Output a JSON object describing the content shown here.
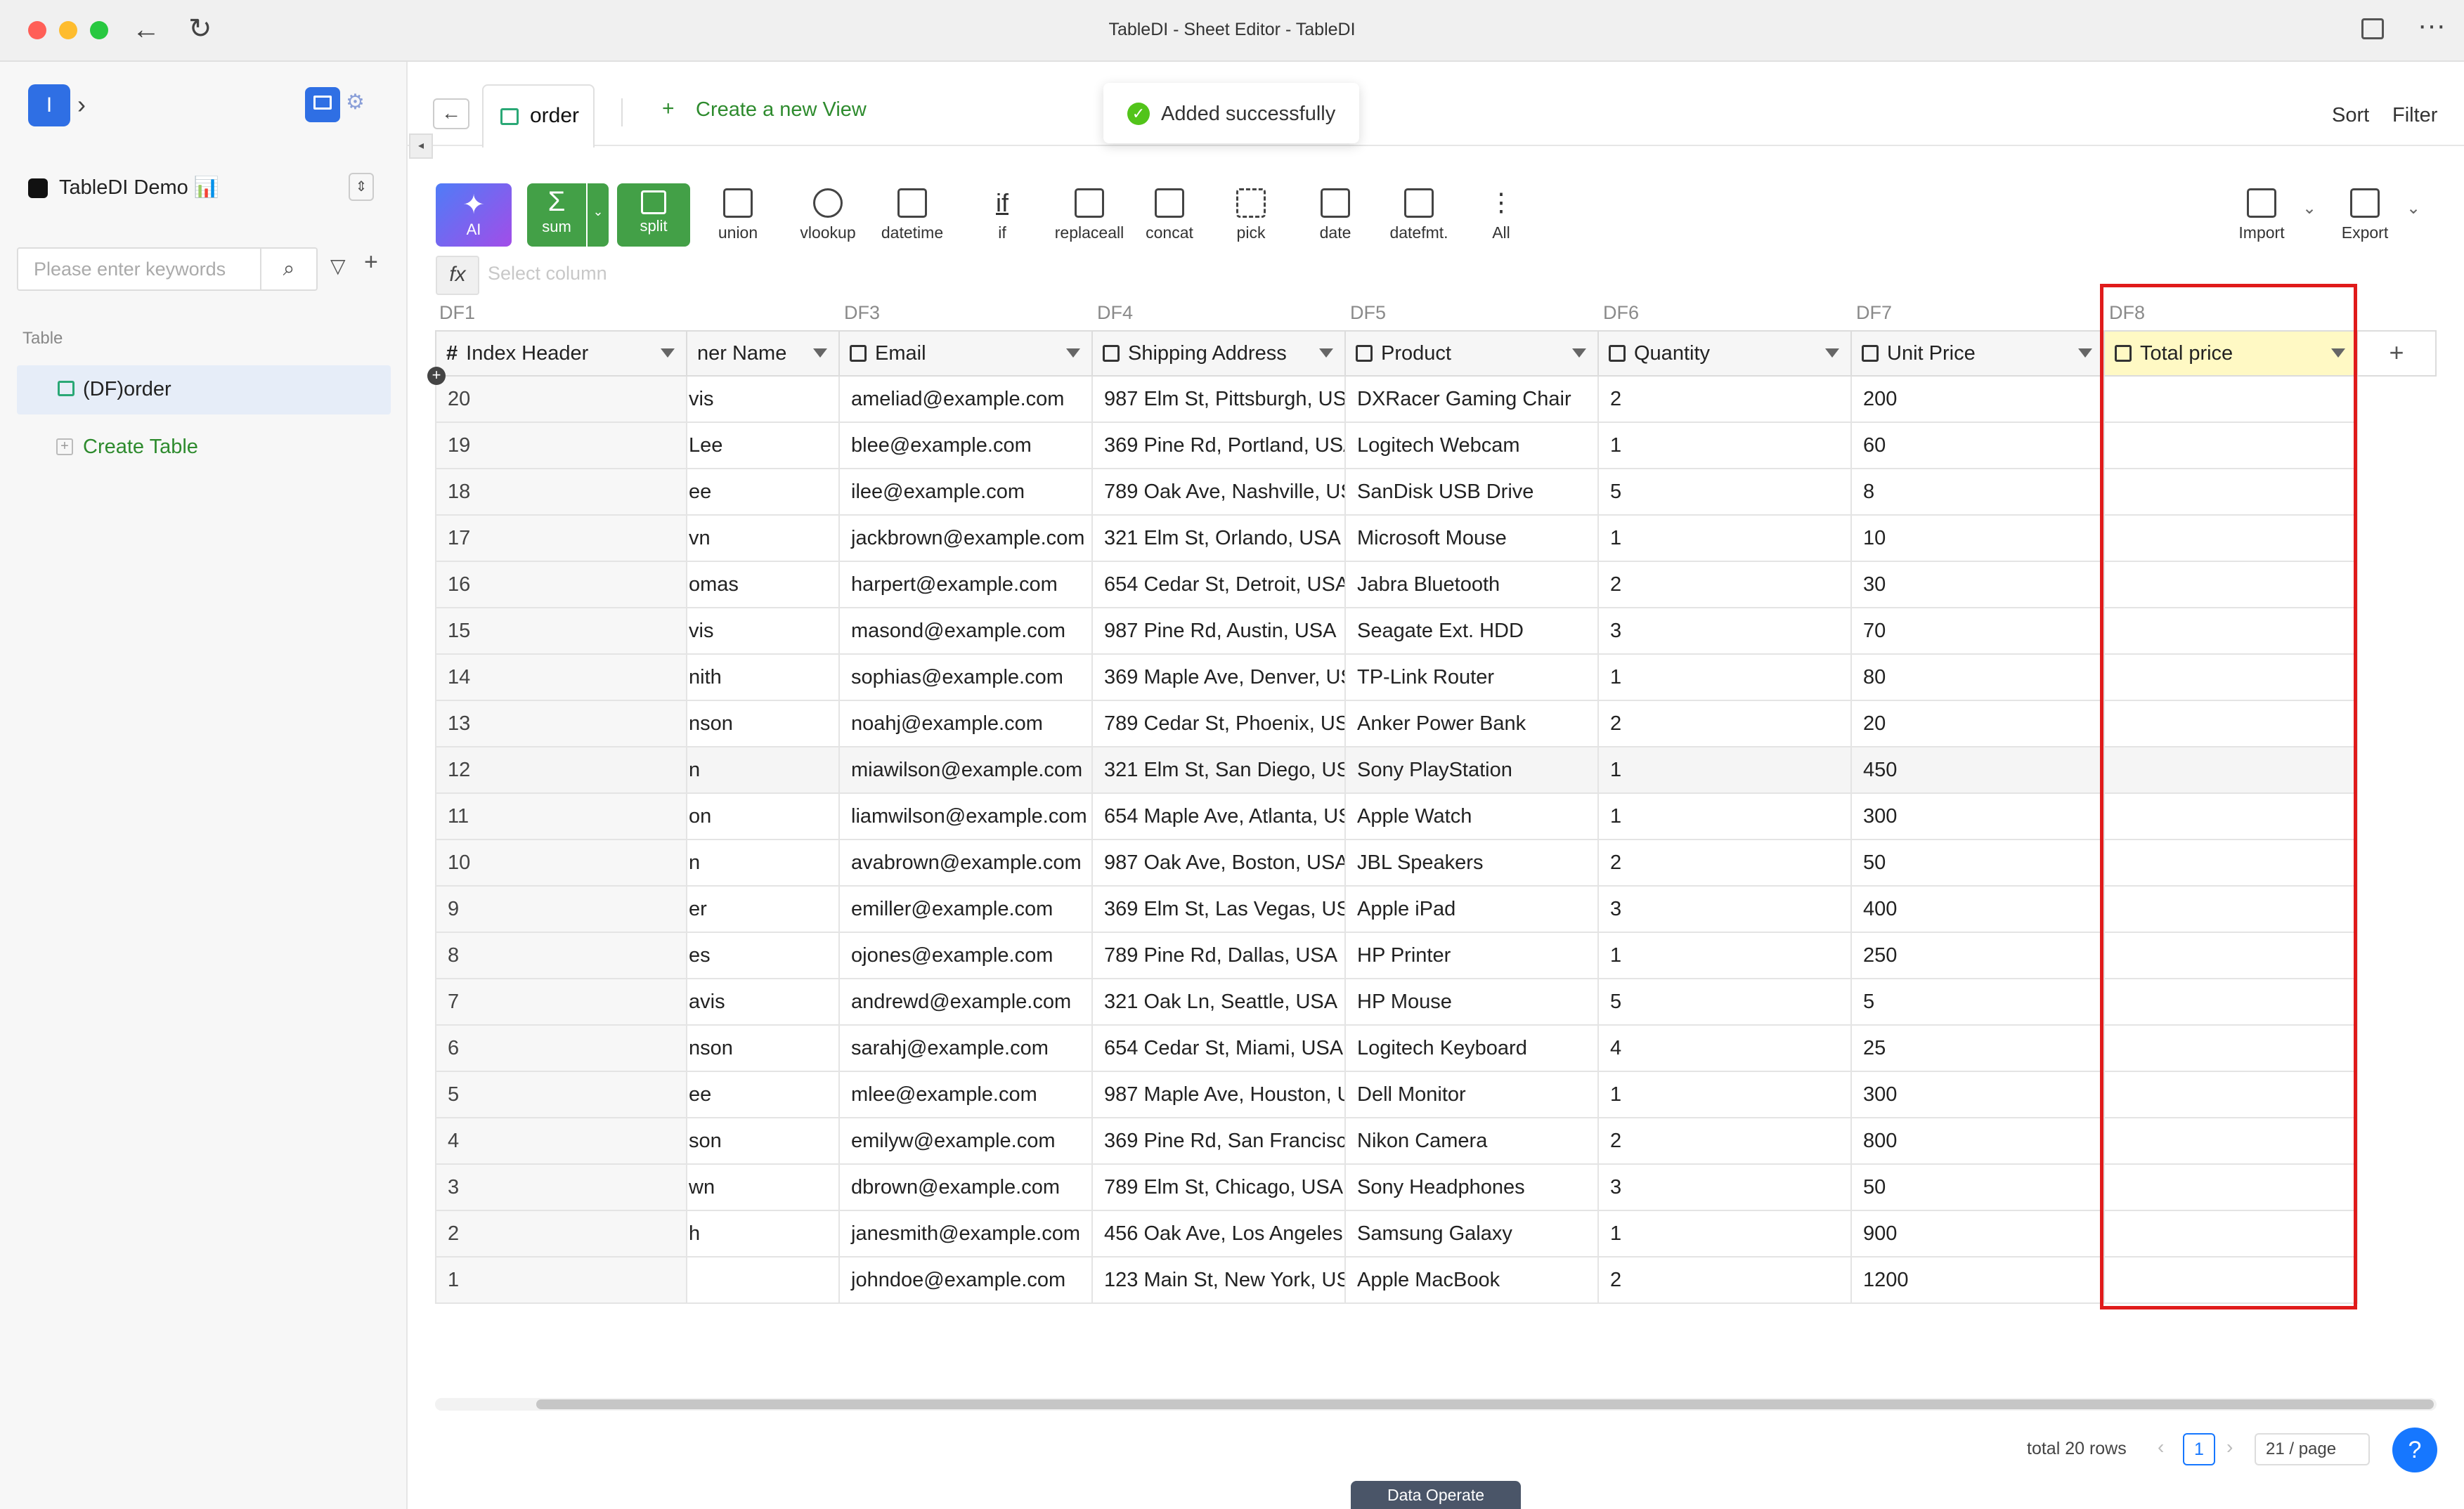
{
  "window": {
    "title": "TableDI - Sheet Editor - TableDI"
  },
  "sidebar": {
    "workspace_avatar": "I",
    "project_name": "TableDI Demo 📊",
    "search_placeholder": "Please enter keywords",
    "section_label": "Table",
    "tables": [
      {
        "label": "(DF)order"
      }
    ],
    "create_table_label": "Create Table"
  },
  "tabs": {
    "active": "order",
    "new_view_label": "Create a new View"
  },
  "toast": {
    "message": "Added successfully"
  },
  "topright": {
    "sort": "Sort",
    "filter": "Filter"
  },
  "toolbar": {
    "tools": [
      "AI",
      "sum",
      "split",
      "union",
      "vlookup",
      "datetime",
      "if",
      "replaceall",
      "concat",
      "pick",
      "date",
      "datefmt.",
      "All"
    ],
    "import": "Import",
    "export": "Export"
  },
  "formula": {
    "fx": "fx",
    "placeholder": "Select column"
  },
  "table": {
    "df_labels": [
      "DF1",
      "",
      "DF3",
      "DF4",
      "DF5",
      "DF6",
      "DF7",
      "DF8"
    ],
    "columns": [
      "Index Header",
      "ner Name",
      "Email",
      "Shipping Address",
      "Product",
      "Quantity",
      "Unit Price",
      "Total price"
    ],
    "rows": [
      [
        "20",
        "vis",
        "ameliad@example.com",
        "987 Elm St, Pittsburgh, US",
        "DXRacer Gaming Chair",
        "2",
        "200",
        ""
      ],
      [
        "19",
        "Lee",
        "blee@example.com",
        "369 Pine Rd, Portland, USA",
        "Logitech Webcam",
        "1",
        "60",
        ""
      ],
      [
        "18",
        "ee",
        "ilee@example.com",
        "789 Oak Ave, Nashville, US",
        "SanDisk USB Drive",
        "5",
        "8",
        ""
      ],
      [
        "17",
        "vn",
        "jackbrown@example.com",
        "321 Elm St, Orlando, USA",
        "Microsoft Mouse",
        "1",
        "10",
        ""
      ],
      [
        "16",
        "omas",
        "harpert@example.com",
        "654 Cedar St, Detroit, USA",
        "Jabra Bluetooth",
        "2",
        "30",
        ""
      ],
      [
        "15",
        "vis",
        "masond@example.com",
        "987 Pine Rd, Austin, USA",
        "Seagate Ext. HDD",
        "3",
        "70",
        ""
      ],
      [
        "14",
        "nith",
        "sophias@example.com",
        "369 Maple Ave, Denver, US",
        "TP-Link Router",
        "1",
        "80",
        ""
      ],
      [
        "13",
        "nson",
        "noahj@example.com",
        "789 Cedar St, Phoenix, US",
        "Anker Power Bank",
        "2",
        "20",
        ""
      ],
      [
        "12",
        "n",
        "miawilson@example.com",
        "321 Elm St, San Diego, US",
        "Sony PlayStation",
        "1",
        "450",
        ""
      ],
      [
        "11",
        "on",
        "liamwilson@example.com",
        "654 Maple Ave, Atlanta, US",
        "Apple Watch",
        "1",
        "300",
        ""
      ],
      [
        "10",
        "n",
        "avabrown@example.com",
        "987 Oak Ave, Boston, USA",
        "JBL Speakers",
        "2",
        "50",
        ""
      ],
      [
        "9",
        "er",
        "emiller@example.com",
        "369 Elm St, Las Vegas, US",
        "Apple iPad",
        "3",
        "400",
        ""
      ],
      [
        "8",
        "es",
        "ojones@example.com",
        "789 Pine Rd, Dallas, USA",
        "HP Printer",
        "1",
        "250",
        ""
      ],
      [
        "7",
        "avis",
        "andrewd@example.com",
        "321 Oak Ln, Seattle, USA",
        "HP Mouse",
        "5",
        "5",
        ""
      ],
      [
        "6",
        "nson",
        "sarahj@example.com",
        "654 Cedar St, Miami, USA",
        "Logitech Keyboard",
        "4",
        "25",
        ""
      ],
      [
        "5",
        "ee",
        "mlee@example.com",
        "987 Maple Ave, Houston, U",
        "Dell Monitor",
        "1",
        "300",
        ""
      ],
      [
        "4",
        "son",
        "emilyw@example.com",
        "369 Pine Rd, San Francisco",
        "Nikon Camera",
        "2",
        "800",
        ""
      ],
      [
        "3",
        "wn",
        "dbrown@example.com",
        "789 Elm St, Chicago, USA",
        "Sony Headphones",
        "3",
        "50",
        ""
      ],
      [
        "2",
        "h",
        "janesmith@example.com",
        "456 Oak Ave, Los Angeles,",
        "Samsung Galaxy",
        "1",
        "900",
        ""
      ],
      [
        "1",
        "",
        "johndoe@example.com",
        "123 Main St, New York, US",
        "Apple MacBook",
        "2",
        "1200",
        ""
      ]
    ]
  },
  "footer": {
    "total": "total 20 rows",
    "page": "1",
    "per_page": "21 / page",
    "help": "?",
    "data_operate": "Data Operate"
  },
  "colors": {
    "green": "#43a047",
    "highlight": "#fff9c4",
    "red": "#e01b1b",
    "accent": "#1677ff"
  }
}
